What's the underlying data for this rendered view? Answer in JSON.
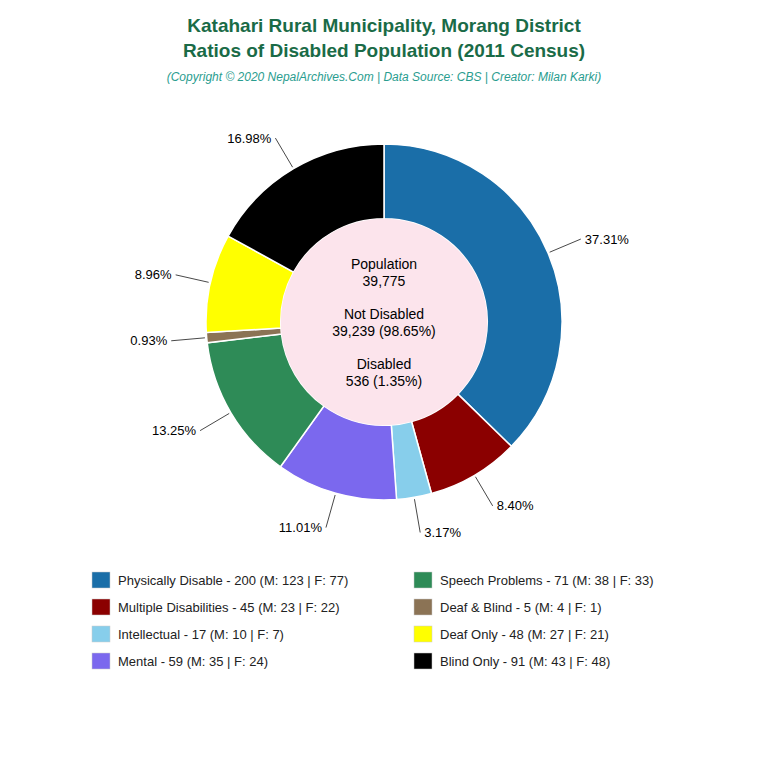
{
  "chart_data": {
    "type": "pie",
    "title": "Katahari Rural Municipality, Morang District\nRatios of Disabled Population (2011 Census)",
    "subtitle": "(Copyright © 2020 NepalArchives.Com | Data Source: CBS | Creator: Milan Karki)",
    "categories": [
      "Physically Disable - 200 (M: 123 | F: 77)",
      "Multiple Disabilities - 45 (M: 23 | F: 22)",
      "Intellectual - 17 (M: 10 | F: 7)",
      "Mental - 59 (M: 35 | F: 24)",
      "Speech Problems - 71 (M: 38 | F: 33)",
      "Deaf & Blind - 5 (M: 4 | F: 1)",
      "Deaf Only - 48 (M: 27 | F: 21)",
      "Blind Only - 91 (M: 43 | F: 48)"
    ],
    "values": [
      37.31,
      8.4,
      3.17,
      11.01,
      13.25,
      0.93,
      8.96,
      16.98
    ],
    "value_labels": [
      "37.31%",
      "8.40%",
      "3.17%",
      "11.01%",
      "13.25%",
      "0.93%",
      "8.96%",
      "16.98%"
    ],
    "colors": [
      "#1a6ea8",
      "#8b0000",
      "#87ceeb",
      "#7b68ee",
      "#2e8b57",
      "#8b7355",
      "#ffff00",
      "#000000"
    ],
    "data_labels": true,
    "legend": "bottom",
    "annotations": [
      "Population\n39,775",
      "Not Disabled\n39,239 (98.65%)",
      "Disabled\n536 (1.35%)"
    ]
  }
}
